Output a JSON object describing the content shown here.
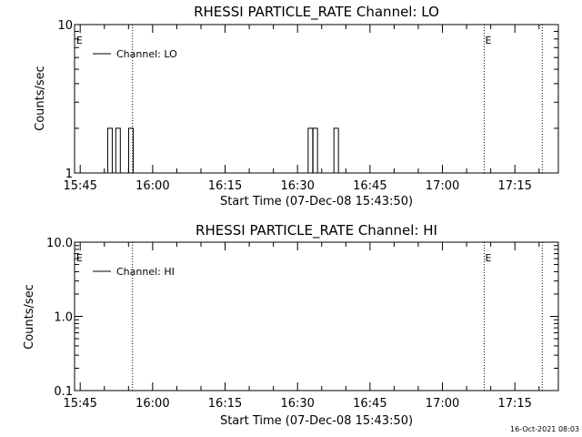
{
  "footer_timestamp": "16-Oct-2021 08:03",
  "chart_data": [
    {
      "type": "line",
      "title": "RHESSI PARTICLE_RATE Channel: LO",
      "xlabel": "Start Time (07-Dec-08 15:43:50)",
      "ylabel": "Counts/sec",
      "y_scale": "log",
      "ylim": [
        1,
        10
      ],
      "y_ticks": [
        "1",
        "10"
      ],
      "xlim": [
        "15:43:50",
        "17:24:00"
      ],
      "x_ticks": [
        "15:45",
        "16:00",
        "16:15",
        "16:30",
        "16:45",
        "17:00",
        "17:15"
      ],
      "legend": {
        "position": "top-left",
        "entries": [
          "Channel: LO"
        ]
      },
      "series": [
        {
          "name": "Channel: LO",
          "spikes": [
            {
              "time": "15:51:10",
              "value": 2
            },
            {
              "time": "15:52:50",
              "value": 2
            },
            {
              "time": "15:55:30",
              "value": 2
            },
            {
              "time": "16:32:40",
              "value": 2
            },
            {
              "time": "16:33:40",
              "value": 2
            },
            {
              "time": "16:38:00",
              "value": 2
            }
          ]
        }
      ],
      "markers": [
        {
          "time": "15:44:00",
          "label": "E"
        },
        {
          "time": "17:08:40",
          "label": "E"
        }
      ],
      "dotted_lines": [
        "15:55:50",
        "17:08:40",
        "17:20:40"
      ]
    },
    {
      "type": "line",
      "title": "RHESSI PARTICLE_RATE Channel: HI",
      "xlabel": "Start Time (07-Dec-08 15:43:50)",
      "ylabel": "Counts/sec",
      "y_scale": "log",
      "ylim": [
        0.1,
        10
      ],
      "y_ticks": [
        "0.1",
        "1.0",
        "10.0"
      ],
      "xlim": [
        "15:43:50",
        "17:24:00"
      ],
      "x_ticks": [
        "15:45",
        "16:00",
        "16:15",
        "16:30",
        "16:45",
        "17:00",
        "17:15"
      ],
      "legend": {
        "position": "top-left",
        "entries": [
          "Channel: HI"
        ]
      },
      "series": [
        {
          "name": "Channel: HI",
          "spikes": []
        }
      ],
      "markers": [
        {
          "time": "15:44:00",
          "label": "E"
        },
        {
          "time": "17:08:40",
          "label": "E"
        }
      ],
      "dotted_lines": [
        "15:55:50",
        "17:08:40",
        "17:20:40"
      ]
    }
  ]
}
